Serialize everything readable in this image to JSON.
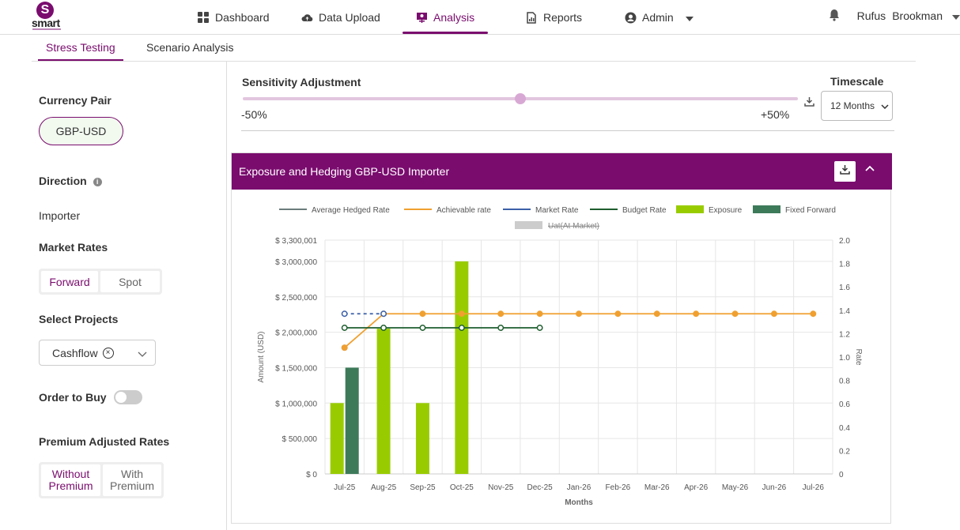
{
  "brand": {
    "logo_letter": "S",
    "logo_text": "smart"
  },
  "nav": {
    "items": [
      {
        "label": "Dashboard",
        "icon": "grid-icon"
      },
      {
        "label": "Data Upload",
        "icon": "cloud-upload-icon"
      },
      {
        "label": "Analysis",
        "icon": "presentation-icon",
        "active": true
      },
      {
        "label": "Reports",
        "icon": "report-icon"
      },
      {
        "label": "Admin",
        "icon": "user-circle-icon"
      }
    ],
    "user_first": "Rufus",
    "user_last": "Brookman"
  },
  "subtabs": [
    "Stress Testing",
    "Scenario Analysis"
  ],
  "sidebar": {
    "currency_pair_label": "Currency Pair",
    "currency_pair_value": "GBP-USD",
    "direction_label": "Direction",
    "direction_info": "i",
    "direction_value": "Importer",
    "market_rates_label": "Market Rates",
    "market_rates_options": [
      "Forward",
      "Spot"
    ],
    "select_projects_label": "Select Projects",
    "project_chip": "Cashflow",
    "chip_remove": "×",
    "order_label": "Order to Buy",
    "premium_label": "Premium Adjusted Rates",
    "premium_options": [
      "Without Premium",
      "With Premium"
    ]
  },
  "sensitivity": {
    "title": "Sensitivity Adjustment",
    "min": "-50%",
    "max": "+50%",
    "value_fraction": 0.5
  },
  "timescale": {
    "label": "Timescale",
    "value": "12 Months"
  },
  "panel": {
    "title": "Exposure and Hedging GBP-USD Importer"
  },
  "colors": {
    "brand": "#7a0c6e",
    "exposure": "#99cc00",
    "fixed_forward": "#3d7a5a",
    "achievable": "#f0a030",
    "market": "#3a5fa8",
    "budget": "#1e5e2e",
    "avg_hedged": "#6b7b7b"
  },
  "chart_data": {
    "type": "bar",
    "categories": [
      "Jul-25",
      "Aug-25",
      "Sep-25",
      "Oct-25",
      "Nov-25",
      "Dec-25",
      "Jan-26",
      "Feb-26",
      "Mar-26",
      "Apr-26",
      "May-26",
      "Jun-26",
      "Jul-26"
    ],
    "xlabel": "Months",
    "ylabel": "Amount (USD)",
    "y2label": "Rate",
    "ylim": [
      0,
      3300001
    ],
    "y2lim": [
      0,
      2.0
    ],
    "yticks": [
      "$ 3,300,001",
      "$ 3,000,000",
      "$ 2,500,000",
      "$ 2,000,000",
      "$ 1,500,000",
      "$ 1,000,000",
      "$ 500,000",
      "$ 0"
    ],
    "yticks_values": [
      3300001,
      3000000,
      2500000,
      2000000,
      1500000,
      1000000,
      500000,
      0
    ],
    "y2ticks": [
      "2.0",
      "1.8",
      "1.6",
      "1.4",
      "1.2",
      "1.0",
      "0.8",
      "0.6",
      "0.4",
      "0.2",
      "0"
    ],
    "y2ticks_values": [
      2.0,
      1.8,
      1.6,
      1.4,
      1.2,
      1.0,
      0.8,
      0.6,
      0.4,
      0.2,
      0
    ],
    "legend": [
      "Average Hedged Rate",
      "Achievable rate",
      "Market Rate",
      "Budget Rate",
      "Exposure",
      "Fixed Forward",
      "Uat(At Market)"
    ],
    "bar_series": [
      {
        "name": "Exposure",
        "values": [
          1000000,
          2050000,
          1000000,
          3000000,
          0,
          0,
          0,
          0,
          0,
          0,
          0,
          0,
          0
        ]
      },
      {
        "name": "Fixed Forward",
        "values": [
          1500000,
          0,
          0,
          0,
          0,
          0,
          0,
          0,
          0,
          0,
          0,
          0,
          0
        ]
      }
    ],
    "line_series": [
      {
        "name": "Average Hedged Rate",
        "values": [
          1.08,
          null,
          null,
          null,
          null,
          null,
          null,
          null,
          null,
          null,
          null,
          null,
          null
        ]
      },
      {
        "name": "Achievable rate",
        "values": [
          1.08,
          1.37,
          1.37,
          1.37,
          1.37,
          1.37,
          1.37,
          1.37,
          1.37,
          1.37,
          1.37,
          1.37,
          1.37
        ]
      },
      {
        "name": "Market Rate",
        "values": [
          1.37,
          1.37,
          null,
          null,
          null,
          null,
          null,
          null,
          null,
          null,
          null,
          null,
          null
        ]
      },
      {
        "name": "Budget Rate",
        "values": [
          1.25,
          1.25,
          1.25,
          1.25,
          1.25,
          1.25,
          null,
          null,
          null,
          null,
          null,
          null,
          null
        ]
      }
    ]
  }
}
